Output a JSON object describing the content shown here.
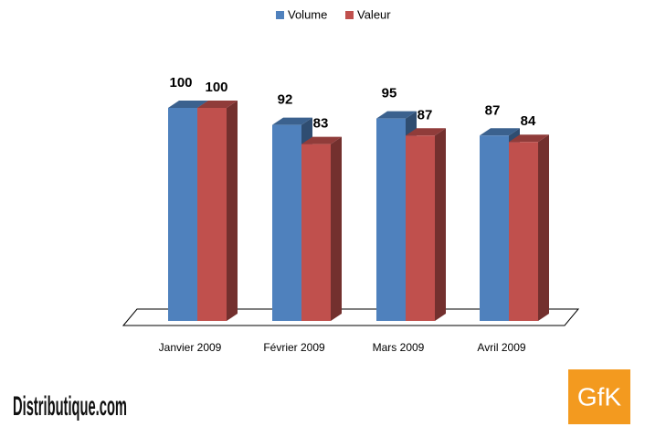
{
  "chart_data": {
    "type": "bar3d",
    "categories": [
      "Janvier 2009",
      "Février 2009",
      "Mars 2009",
      "Avril 2009"
    ],
    "series": [
      {
        "name": "Volume",
        "color": "#4f81bd",
        "values": [
          100,
          92,
          95,
          87
        ]
      },
      {
        "name": "Valeur",
        "color": "#c0504d",
        "values": [
          100,
          83,
          87,
          84
        ]
      }
    ],
    "legend": "top"
  },
  "footer": {
    "publisher": "Distributique.com",
    "source": "GfK"
  }
}
